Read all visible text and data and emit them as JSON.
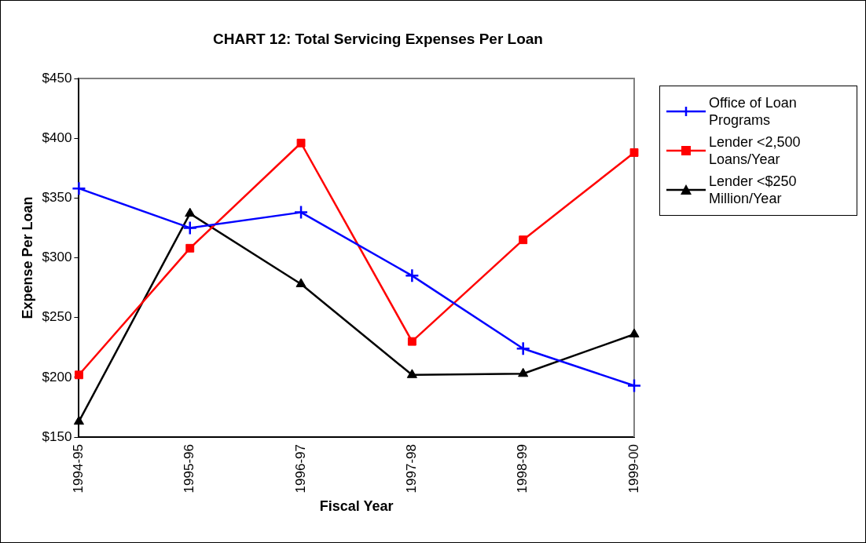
{
  "chart_data": {
    "type": "line",
    "title": "CHART  12:  Total Servicing Expenses Per Loan",
    "xlabel": "Fiscal Year",
    "ylabel": "Expense Per Loan",
    "categories": [
      "1994-95",
      "1995-96",
      "1996-97",
      "1997-98",
      "1998-99",
      "1999-00"
    ],
    "series": [
      {
        "name": "Office of Loan Programs",
        "color": "#0000ff",
        "marker": "cross",
        "values": [
          358,
          325,
          338,
          285,
          224,
          193
        ]
      },
      {
        "name": "Lender <2,500 Loans/Year",
        "color": "#ff0000",
        "marker": "square",
        "values": [
          202,
          308,
          396,
          230,
          315,
          388
        ]
      },
      {
        "name": "Lender <$250 Million/Year",
        "color": "#000000",
        "marker": "triangle",
        "values": [
          163,
          337,
          278,
          202,
          203,
          236
        ]
      }
    ],
    "ylim": [
      150,
      450
    ],
    "yticks": [
      {
        "value": 150,
        "label": "$150"
      },
      {
        "value": 200,
        "label": "$200"
      },
      {
        "value": 250,
        "label": "$250"
      },
      {
        "value": 300,
        "label": "$300"
      },
      {
        "value": 350,
        "label": "$350"
      },
      {
        "value": 400,
        "label": "$400"
      },
      {
        "value": 450,
        "label": "$450"
      }
    ],
    "grid": false,
    "legend": "right",
    "line_style": "solid"
  }
}
